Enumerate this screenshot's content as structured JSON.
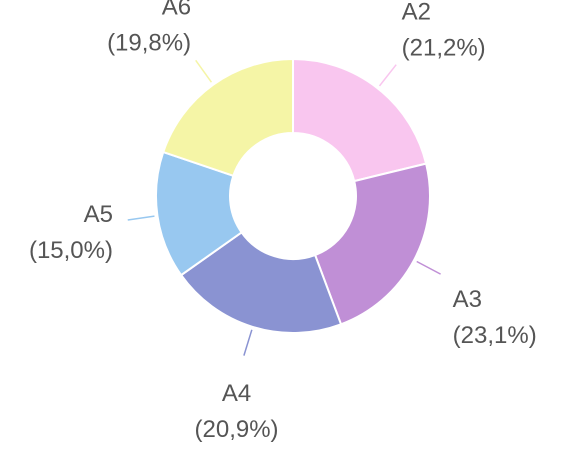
{
  "chart_data": {
    "type": "donut",
    "categories": [
      "A2",
      "A3",
      "A4",
      "A5",
      "A6"
    ],
    "values": [
      21.2,
      23.1,
      20.9,
      15.0,
      19.8
    ],
    "value_labels": [
      "(21,2%)",
      "(23,1%)",
      "(20,9%)",
      "(15,0%)",
      "(19,8%)"
    ],
    "colors": [
      "#f9c6ef",
      "#c08fd6",
      "#8a93d2",
      "#98c8f0",
      "#f5f5a6"
    ]
  }
}
